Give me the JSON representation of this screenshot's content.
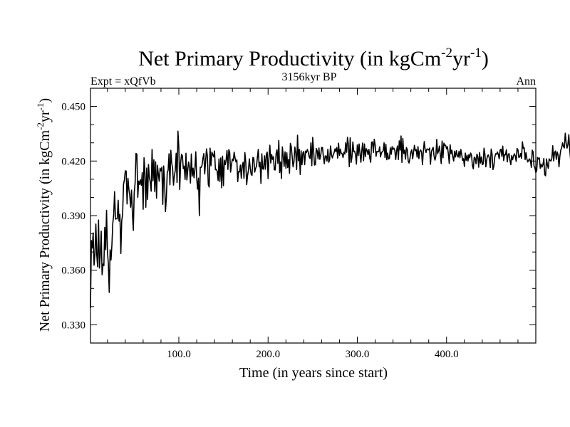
{
  "chart_data": {
    "type": "line",
    "title_main": "Net Primary Productivity (in kgCm",
    "title_sup1": "-2",
    "title_mid": "yr",
    "title_sup2": "-1",
    "title_end": ")",
    "expt_label": "Expt = xQfVb",
    "period_label": "3156kyr BP",
    "season_label": "Ann",
    "xlabel": "Time (in years since start)",
    "ylabel_main": "Net Primary Productivity (in kgCm",
    "ylabel_sup1": "-2",
    "ylabel_mid": "yr",
    "ylabel_sup2": "-1",
    "ylabel_end": ")",
    "xlim": [
      1,
      500
    ],
    "ylim": [
      0.32,
      0.46
    ],
    "x_ticks": [
      100,
      200,
      300,
      400
    ],
    "x_tick_labels": [
      "100.0",
      "200.0",
      "300.0",
      "400.0"
    ],
    "y_ticks": [
      0.33,
      0.36,
      0.39,
      0.42,
      0.45
    ],
    "y_tick_labels": [
      "0.330",
      "0.360",
      "0.390",
      "0.420",
      "0.450"
    ],
    "series": [
      {
        "name": "NPP annual mean",
        "x_start": 1,
        "x_step": 1,
        "values": [
          0.3393,
          0.3763,
          0.3722,
          0.3805,
          0.3628,
          0.3688,
          0.3854,
          0.3686,
          0.3619,
          0.3876,
          0.3612,
          0.3686,
          0.3815,
          0.3575,
          0.3634,
          0.3625,
          0.3836,
          0.3713,
          0.3929,
          0.37,
          0.3638,
          0.3478,
          0.3712,
          0.3656,
          0.3739,
          0.3858,
          0.3904,
          0.4032,
          0.3881,
          0.3883,
          0.3882,
          0.3985,
          0.387,
          0.3906,
          0.3692,
          0.3872,
          0.3905,
          0.4071,
          0.4097,
          0.4146,
          0.4145,
          0.3964,
          0.4105,
          0.4046,
          0.4011,
          0.3946,
          0.404,
          0.3908,
          0.3819,
          0.4025,
          0.4079,
          0.4242,
          0.4237,
          0.4001,
          0.409,
          0.4071,
          0.4097,
          0.4067,
          0.4137,
          0.3935,
          0.4218,
          0.4142,
          0.3946,
          0.4162,
          0.3989,
          0.4181,
          0.411,
          0.4083,
          0.4034,
          0.4264,
          0.4091,
          0.4207,
          0.4033,
          0.4196,
          0.3996,
          0.4177,
          0.4128,
          0.4089,
          0.4161,
          0.4146,
          0.4166,
          0.3962,
          0.4173,
          0.4092,
          0.3922,
          0.3995,
          0.4137,
          0.415,
          0.424,
          0.4069,
          0.4259,
          0.4189,
          0.4162,
          0.4068,
          0.4118,
          0.4149,
          0.4243,
          0.4082,
          0.4364,
          0.4275,
          0.4044,
          0.4188,
          0.4237,
          0.4228,
          0.4158,
          0.4172,
          0.4099,
          0.4243,
          0.4096,
          0.4151,
          0.4195,
          0.4164,
          0.4079,
          0.4239,
          0.4117,
          0.4161,
          0.4108,
          0.4154,
          0.4251,
          0.4106,
          0.4045,
          0.4106,
          0.39,
          0.4166,
          0.4165,
          0.4177,
          0.4215,
          0.4241,
          0.4129,
          0.4198,
          0.4267,
          0.4226,
          0.4071,
          0.4057,
          0.4271,
          0.4174,
          0.425,
          0.4235,
          0.4223,
          0.4255,
          0.4152,
          0.4155,
          0.4143,
          0.4093,
          0.4212,
          0.4088,
          0.4217,
          0.4053,
          0.4227,
          0.4065,
          0.4205,
          0.418,
          0.4207,
          0.4258,
          0.4154,
          0.4263,
          0.4248,
          0.4139,
          0.4181,
          0.4211,
          0.4203,
          0.4249,
          0.4216,
          0.4195,
          0.4206,
          0.4087,
          0.4143,
          0.414,
          0.4178,
          0.4105,
          0.4174,
          0.4193,
          0.4105,
          0.4247,
          0.4194,
          0.407,
          0.412,
          0.415,
          0.4212,
          0.4162,
          0.4128,
          0.4121,
          0.422,
          0.4216,
          0.4139,
          0.4159,
          0.4172,
          0.4219,
          0.4264,
          0.4168,
          0.4193,
          0.4077,
          0.424,
          0.4157,
          0.4155,
          0.4229,
          0.4155,
          0.4237,
          0.4249,
          0.4104,
          0.4222,
          0.4287,
          0.4189,
          0.4236,
          0.4209,
          0.4224,
          0.4152,
          0.4151,
          0.4241,
          0.4262,
          0.4187,
          0.4313,
          0.4137,
          0.4195,
          0.4104,
          0.4278,
          0.4229,
          0.417,
          0.4251,
          0.416,
          0.4246,
          0.4164,
          0.4209,
          0.4133,
          0.4297,
          0.4279,
          0.4223,
          0.4168,
          0.4196,
          0.4277,
          0.4246,
          0.4153,
          0.4342,
          0.4201,
          0.4265,
          0.4126,
          0.4256,
          0.418,
          0.4245,
          0.4252,
          0.418,
          0.4255,
          0.4246,
          0.4264,
          0.4249,
          0.4224,
          0.4214,
          0.43,
          0.4175,
          0.433,
          0.4258,
          0.4178,
          0.418,
          0.4269,
          0.4256,
          0.4211,
          0.4272,
          0.4209,
          0.4231,
          0.4275,
          0.4274,
          0.4223,
          0.4185,
          0.4228,
          0.4227,
          0.42,
          0.4265,
          0.4193,
          0.4208,
          0.4283,
          0.4236,
          0.4217,
          0.4233,
          0.4246,
          0.4267,
          0.4252,
          0.4275,
          0.4216,
          0.4298,
          0.4231,
          0.4266,
          0.4242,
          0.424,
          0.4219,
          0.4249,
          0.4238,
          0.43,
          0.4248,
          0.4331,
          0.4291,
          0.4169,
          0.4328,
          0.4192,
          0.4221,
          0.4305,
          0.4252,
          0.4254,
          0.4234,
          0.4183,
          0.4289,
          0.423,
          0.4294,
          0.424,
          0.4193,
          0.4256,
          0.4299,
          0.4202,
          0.4294,
          0.4225,
          0.4268,
          0.4258,
          0.4235,
          0.4264,
          0.4216,
          0.4193,
          0.4304,
          0.4305,
          0.4247,
          0.4319,
          0.4288,
          0.4226,
          0.4253,
          0.4251,
          0.4251,
          0.4278,
          0.4223,
          0.4245,
          0.4251,
          0.4256,
          0.43,
          0.4219,
          0.4293,
          0.4207,
          0.4244,
          0.4211,
          0.4215,
          0.4273,
          0.4237,
          0.4279,
          0.4264,
          0.4271,
          0.4259,
          0.4208,
          0.4257,
          0.4283,
          0.4208,
          0.4311,
          0.426,
          0.4338,
          0.4192,
          0.4324,
          0.4242,
          0.426,
          0.421,
          0.4274,
          0.4263,
          0.4201,
          0.4189,
          0.4216,
          0.4249,
          0.4262,
          0.4212,
          0.4248,
          0.4286,
          0.4257,
          0.4263,
          0.4221,
          0.4279,
          0.4213,
          0.4254,
          0.4261,
          0.4248,
          0.418,
          0.4254,
          0.4307,
          0.4264,
          0.4247,
          0.4266,
          0.4266,
          0.4261,
          0.4271,
          0.4182,
          0.4251,
          0.4265,
          0.4275,
          0.4227,
          0.4205,
          0.4226,
          0.4319,
          0.424,
          0.4256,
          0.4282,
          0.4236,
          0.4186,
          0.431,
          0.4218,
          0.4298,
          0.4286,
          0.4287,
          0.4267,
          0.4279,
          0.424,
          0.4187,
          0.429,
          0.424,
          0.426,
          0.4224,
          0.42,
          0.4254,
          0.4222,
          0.4257,
          0.423,
          0.4222,
          0.4254,
          0.4218,
          0.4264,
          0.4235,
          0.4203,
          0.4213,
          0.417,
          0.4244,
          0.4204,
          0.4232,
          0.42,
          0.4235,
          0.4218,
          0.4244,
          0.4232,
          0.4174,
          0.4157,
          0.4221,
          0.4217,
          0.4185,
          0.4238,
          0.4225,
          0.4166,
          0.4247,
          0.4189,
          0.4223,
          0.418,
          0.4183,
          0.4271,
          0.4236,
          0.4168,
          0.4209,
          0.423,
          0.4233,
          0.4214,
          0.4164,
          0.4266,
          0.4239,
          0.4153,
          0.4171,
          0.422,
          0.424,
          0.4237,
          0.425,
          0.4236,
          0.4212,
          0.426,
          0.4265,
          0.4226,
          0.4282,
          0.4203,
          0.4236,
          0.4234,
          0.4262,
          0.4195,
          0.4236,
          0.4241,
          0.4205,
          0.418,
          0.423,
          0.4207,
          0.4228,
          0.424,
          0.4228,
          0.4198,
          0.4269,
          0.4262,
          0.4219,
          0.4223,
          0.4241,
          0.4215,
          0.4306,
          0.4269,
          0.4273,
          0.4208,
          0.4247,
          0.4212,
          0.4195,
          0.4205,
          0.4212,
          0.4201,
          0.4165,
          0.426,
          0.425,
          0.4173,
          0.4163,
          0.4137,
          0.4147,
          0.422,
          0.4211,
          0.4217,
          0.416,
          0.4183,
          0.4167,
          0.418,
          0.4214,
          0.4125,
          0.4119,
          0.4212,
          0.4179,
          0.416,
          0.4212,
          0.4204,
          0.42,
          0.4216,
          0.4284,
          0.4201,
          0.4247,
          0.4255,
          0.4209,
          0.425,
          0.4233,
          0.4168,
          0.4228,
          0.426,
          0.4273,
          0.43,
          0.428,
          0.4272,
          0.4353,
          0.4301,
          0.4271,
          0.4291,
          0.4345,
          0.4262,
          0.4208,
          0.4323,
          0.4258,
          0.4231,
          0.4256,
          0.422,
          0.4238,
          0.4256,
          0.4273,
          0.4216,
          0.4188,
          0.4193,
          0.4124,
          0.4119,
          0.4152,
          0.4165,
          0.4186,
          0.4134,
          0.4156,
          0.426,
          0.4263,
          0.4185,
          0.4248,
          0.4175,
          0.4214,
          0.4246,
          0.4175,
          0.4206,
          0.4296,
          0.4223,
          0.4292,
          0.425,
          0.4258,
          0.4187,
          0.4218,
          0.4246,
          0.4267,
          0.429,
          0.4265,
          0.4259,
          0.4249,
          0.4169,
          0.4201,
          0.4241,
          0.4269,
          0.4259,
          0.4202,
          0.4151,
          0.4172,
          0.4243,
          0.4179,
          0.4249,
          0.4226,
          0.4207,
          0.4259,
          0.4283,
          0.4253,
          0.4218,
          0.4331,
          0.4254,
          0.4201,
          0.4294,
          0.4258,
          0.4205,
          0.424,
          0.4258,
          0.4231,
          0.4281,
          0.4157,
          0.4186,
          0.4278,
          0.4144,
          0.4155,
          0.416,
          0.4088,
          0.4189,
          0.4214,
          0.4163,
          0.424,
          0.4206,
          0.4148,
          0.4213,
          0.4167,
          0.4219,
          0.428,
          0.417,
          0.4247,
          0.4214,
          0.4235,
          0.4149,
          0.4186,
          0.4233,
          0.4239,
          0.4165,
          0.4199,
          0.4205,
          0.4155,
          0.4191,
          0.4163,
          0.4136,
          0.4225,
          0.4122,
          0.4221,
          0.4236,
          0.4136,
          0.4206,
          0.4244,
          0.423,
          0.4236,
          0.4248,
          0.4178,
          0.4216,
          0.4257,
          0.4253,
          0.4255,
          0.4215,
          0.4286,
          0.431,
          0.4232,
          0.4296,
          0.424,
          0.4217,
          0.4313,
          0.4288,
          0.4238,
          0.4279,
          0.4208,
          0.4226,
          0.4262,
          0.4213,
          0.4181,
          0.4197,
          0.4209,
          0.4191,
          0.4275,
          0.4217,
          0.4221,
          0.4229,
          0.4297,
          0.4223,
          0.423,
          0.4233,
          0.4271,
          0.4221,
          0.4268,
          0.4226,
          0.4242,
          0.4241,
          0.4205,
          0.4229,
          0.4191,
          0.4197,
          0.4248,
          0.4202,
          0.4222,
          0.4209,
          0.4206,
          0.419,
          0.4237,
          0.4226,
          0.4161,
          0.4194,
          0.4218,
          0.4182,
          0.4141,
          0.4208,
          0.4189,
          0.4143,
          0.4172,
          0.4174,
          0.4205,
          0.4125,
          0.419,
          0.4155,
          0.4194,
          0.4207,
          0.417,
          0.4202,
          0.4146,
          0.4196,
          0.4203,
          0.4195,
          0.4232,
          0.4143,
          0.4128,
          0.4183,
          0.4182,
          0.4176,
          0.4188,
          0.4116,
          0.4161,
          0.4217,
          0.4158,
          0.4213,
          0.4136,
          0.4179,
          0.4162,
          0.423,
          0.42,
          0.4174,
          0.4226,
          0.4179,
          0.4195,
          0.4232,
          0.4181,
          0.417,
          0.4138,
          0.4182,
          0.4205,
          0.4186,
          0.4187,
          0.4172,
          0.4209,
          0.4199,
          0.4197,
          0.416,
          0.4183,
          0.421,
          0.4152,
          0.4202,
          0.4161,
          0.4204,
          0.4164,
          0.416,
          0.4229,
          0.4163,
          0.4181,
          0.42,
          0.4182,
          0.4161,
          0.4133,
          0.4184,
          0.4247,
          0.4161,
          0.4159,
          0.4202,
          0.4169,
          0.4108,
          0.4165,
          0.422,
          0.4198,
          0.4208,
          0.4202,
          0.4179,
          0.4177,
          0.4243,
          0.4196,
          0.4155,
          0.4188,
          0.4208,
          0.4216,
          0.4224,
          0.4182,
          0.4198,
          0.4225,
          0.4218,
          0.4179,
          0.4238,
          0.4245,
          0.4219,
          0.4223,
          0.4208,
          0.4176,
          0.4218,
          0.4196,
          0.4205,
          0.4252,
          0.4249,
          0.4149,
          0.4178,
          0.4219,
          0.4218,
          0.4204,
          0.4173,
          0.4255,
          0.4178,
          0.4177,
          0.42,
          0.4211,
          0.4173,
          0.4205,
          0.4248,
          0.4202,
          0.4154,
          0.4218,
          0.4231,
          0.4216,
          0.4206,
          0.4179,
          0.4232,
          0.4216,
          0.4234,
          0.4186,
          0.4222,
          0.421,
          0.4155,
          0.4234,
          0.4211,
          0.4219,
          0.4217,
          0.4211,
          0.4251,
          0.4165,
          0.4246,
          0.4203,
          0.4161,
          0.4248,
          0.4226,
          0.4251,
          0.4192,
          0.4217,
          0.4193,
          0.4237,
          0.4236,
          0.4177,
          0.4154,
          0.4227,
          0.4214,
          0.4216,
          0.4219,
          0.4201,
          0.4221,
          0.4181,
          0.4173,
          0.4156,
          0.4197,
          0.4198,
          0.4199,
          0.4217,
          0.4255,
          0.4218,
          0.4208,
          0.4152,
          0.4213,
          0.4157,
          0.4194,
          0.4229,
          0.4174,
          0.4178,
          0.4184,
          0.4178,
          0.4209,
          0.4224,
          0.4238,
          0.4154,
          0.4213,
          0.4182,
          0.4189,
          0.4206,
          0.418,
          0.4212,
          0.421,
          0.4156,
          0.4205,
          0.4173,
          0.4213,
          0.4206,
          0.4194,
          0.4217,
          0.4198,
          0.4164,
          0.4204,
          0.4159,
          0.421,
          0.4186,
          0.4196,
          0.416,
          0.4173,
          0.4189,
          0.4193,
          0.4172,
          0.4185,
          0.4188,
          0.4162,
          0.4209,
          0.4165
        ]
      }
    ]
  }
}
